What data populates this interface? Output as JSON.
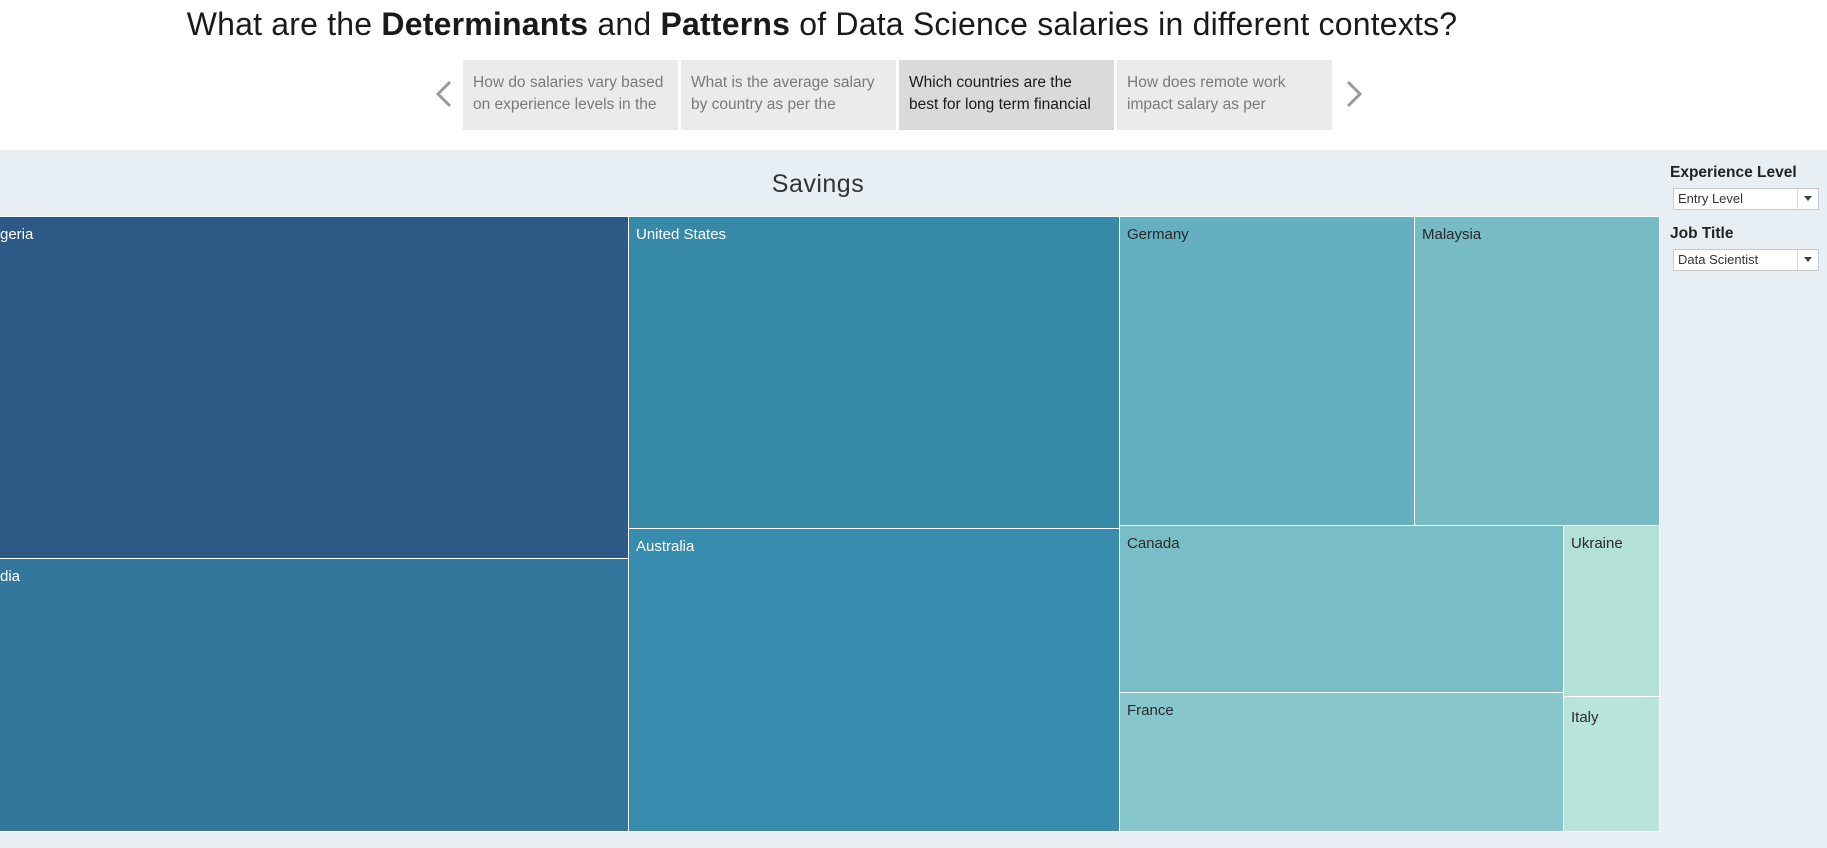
{
  "header": {
    "title_parts": [
      {
        "text": "What are the ",
        "bold": false
      },
      {
        "text": "Determinants",
        "bold": true
      },
      {
        "text": " and ",
        "bold": false
      },
      {
        "text": "Patterns",
        "bold": true
      },
      {
        "text": " of Data Science salaries in different contexts?",
        "bold": false
      }
    ]
  },
  "story": {
    "prev_icon": "chevron-left-icon",
    "next_icon": "chevron-right-icon",
    "tabs": [
      {
        "label": "How do salaries vary based on experience levels in the",
        "active": false
      },
      {
        "label": "What is the average salary by country as per the",
        "active": false
      },
      {
        "label": "Which countries are the best for long term financial",
        "active": true
      },
      {
        "label": "How does remote work impact salary as per",
        "active": false
      }
    ]
  },
  "filters": {
    "experience": {
      "label": "Experience Level",
      "value": "Entry Level",
      "icon": "chevron-down-icon"
    },
    "job_title": {
      "label": "Job Title",
      "value": "Data Scientist",
      "icon": "chevron-down-icon"
    }
  },
  "chart_data": {
    "type": "treemap",
    "title": "Savings",
    "colors": {
      "high": "#2c5985",
      "low": "#b9e3d7"
    },
    "items": [
      {
        "label": "geria",
        "color": "#2d5986",
        "text_color": "#ffffff"
      },
      {
        "label": "dia",
        "color": "#33789c",
        "text_color": "#ffffff"
      },
      {
        "label": "United States",
        "color": "#3789a8",
        "text_color": "#ffffff"
      },
      {
        "label": "Australia",
        "color": "#388cae",
        "text_color": "#ffffff"
      },
      {
        "label": "Germany",
        "color": "#64b0c1",
        "text_color": "#2a2a2a"
      },
      {
        "label": "Malaysia",
        "color": "#77bbc5",
        "text_color": "#2a2a2a"
      },
      {
        "label": "Canada",
        "color": "#79bec6",
        "text_color": "#2a2a2a"
      },
      {
        "label": "France",
        "color": "#86c6cc",
        "text_color": "#2a2a2a"
      },
      {
        "label": "Ukraine",
        "color": "#b4e1d7",
        "text_color": "#2a2a2a"
      },
      {
        "label": "Italy",
        "color": "#b9e4d9",
        "text_color": "#2a2a2a"
      }
    ]
  }
}
